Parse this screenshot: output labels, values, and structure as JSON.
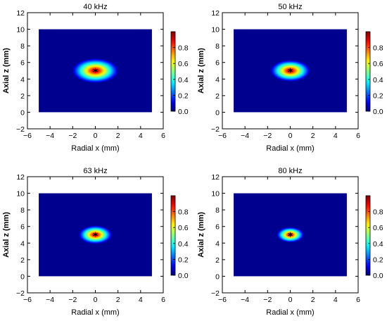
{
  "chart_data": [
    {
      "type": "heatmap",
      "title": "40 kHz",
      "xlabel": "Radial x (mm)",
      "ylabel": "Axial z (mm)",
      "xlim": [
        -6,
        6
      ],
      "ylim": [
        -2,
        12
      ],
      "xticks": [
        "−6",
        "−4",
        "−2",
        "0",
        "2",
        "4",
        "6"
      ],
      "yticks": [
        "−2",
        "0",
        "2",
        "4",
        "6",
        "8",
        "10",
        "12"
      ],
      "field_extent": {
        "x": [
          -5,
          5
        ],
        "z": [
          0,
          10
        ]
      },
      "focus": {
        "x": 0,
        "z": 5
      },
      "focal_spot_halfwidth_mm": {
        "x": 1.1,
        "z": 0.8
      },
      "colorbar": {
        "min": 0.0,
        "max": 1.0,
        "ticks": [
          "0.0",
          "0.2",
          "0.4",
          "0.6",
          "0.8"
        ],
        "colormap": "jet"
      },
      "grid": false
    },
    {
      "type": "heatmap",
      "title": "50 kHz",
      "xlabel": "Radial x (mm)",
      "ylabel": "Axial z (mm)",
      "xlim": [
        -6,
        6
      ],
      "ylim": [
        -2,
        12
      ],
      "xticks": [
        "−6",
        "−4",
        "−2",
        "0",
        "2",
        "4",
        "6"
      ],
      "yticks": [
        "−2",
        "0",
        "2",
        "4",
        "6",
        "8",
        "10",
        "12"
      ],
      "field_extent": {
        "x": [
          -5,
          5
        ],
        "z": [
          0,
          10
        ]
      },
      "focus": {
        "x": 0,
        "z": 5
      },
      "focal_spot_halfwidth_mm": {
        "x": 0.95,
        "z": 0.7
      },
      "colorbar": {
        "min": 0.0,
        "max": 1.0,
        "ticks": [
          "0.0",
          "0.2",
          "0.4",
          "0.6",
          "0.8"
        ],
        "colormap": "jet"
      },
      "grid": false
    },
    {
      "type": "heatmap",
      "title": "63 kHz",
      "xlabel": "Radial x (mm)",
      "ylabel": "Axial z (mm)",
      "xlim": [
        -6,
        6
      ],
      "ylim": [
        -2,
        12
      ],
      "xticks": [
        "−6",
        "−4",
        "−2",
        "0",
        "2",
        "4",
        "6"
      ],
      "yticks": [
        "−2",
        "0",
        "2",
        "4",
        "6",
        "8",
        "10",
        "12"
      ],
      "field_extent": {
        "x": [
          -5,
          5
        ],
        "z": [
          0,
          10
        ]
      },
      "focus": {
        "x": 0,
        "z": 5
      },
      "focal_spot_halfwidth_mm": {
        "x": 0.8,
        "z": 0.6
      },
      "colorbar": {
        "min": 0.0,
        "max": 1.0,
        "ticks": [
          "0.0",
          "0.2",
          "0.4",
          "0.6",
          "0.8"
        ],
        "colormap": "jet"
      },
      "grid": false
    },
    {
      "type": "heatmap",
      "title": "80 kHz",
      "xlabel": "Radial x (mm)",
      "ylabel": "Axial z (mm)",
      "xlim": [
        -6,
        6
      ],
      "ylim": [
        -2,
        12
      ],
      "xticks": [
        "−6",
        "−4",
        "−2",
        "0",
        "2",
        "4",
        "6"
      ],
      "yticks": [
        "−2",
        "0",
        "2",
        "4",
        "6",
        "8",
        "10",
        "12"
      ],
      "field_extent": {
        "x": [
          -5,
          5
        ],
        "z": [
          0,
          10
        ]
      },
      "focus": {
        "x": 0,
        "z": 5
      },
      "focal_spot_halfwidth_mm": {
        "x": 0.65,
        "z": 0.5
      },
      "colorbar": {
        "min": 0.0,
        "max": 1.0,
        "ticks": [
          "0.0",
          "0.2",
          "0.4",
          "0.6",
          "0.8"
        ],
        "colormap": "jet"
      },
      "grid": false
    }
  ],
  "colors": {
    "background_field": "#00008f",
    "focus_marker": "#000000"
  }
}
